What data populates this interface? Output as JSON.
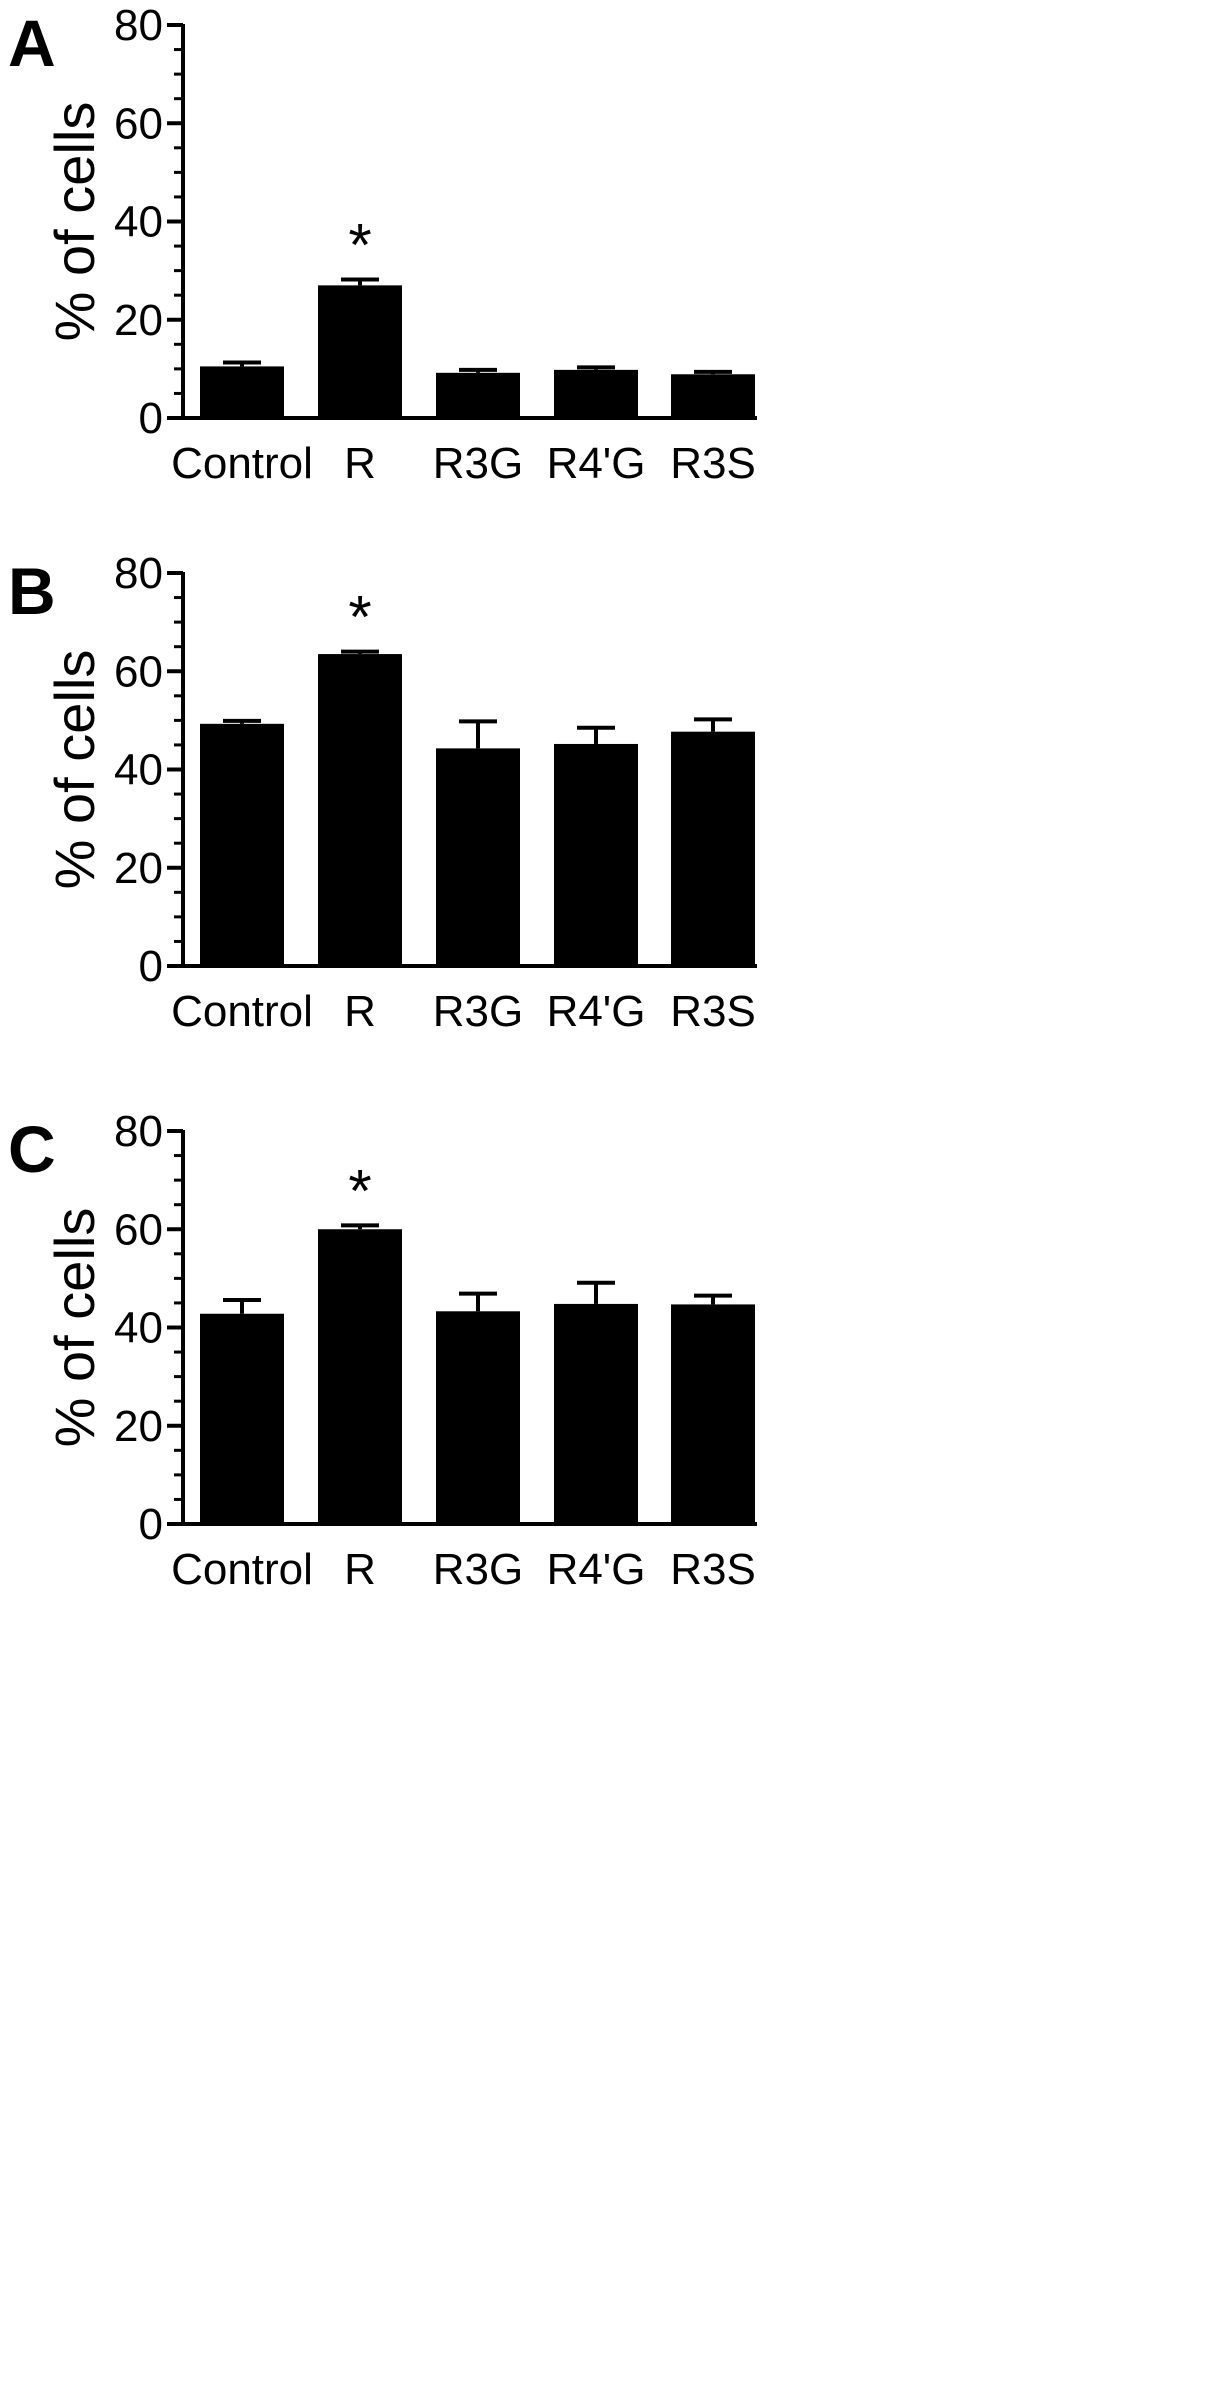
{
  "chart_data": [
    {
      "type": "bar",
      "panel_label": "A",
      "categories": [
        "Control",
        "R",
        "R3G",
        "R4'G",
        "R3S"
      ],
      "values": [
        10.5,
        27,
        9.2,
        9.8,
        8.9
      ],
      "errors": [
        0.8,
        1.2,
        0.6,
        0.5,
        0.5
      ],
      "annotations": [
        "",
        "*",
        "",
        "",
        ""
      ],
      "ylabel": "% of cells",
      "ylim": [
        0,
        80
      ],
      "yticks": [
        0,
        20,
        40,
        60,
        80
      ],
      "grid": false,
      "bar_color": "#000000"
    },
    {
      "type": "bar",
      "panel_label": "B",
      "categories": [
        "Control",
        "R",
        "R3G",
        "R4'G",
        "R3S"
      ],
      "values": [
        49.3,
        63.5,
        44.3,
        45.2,
        47.7
      ],
      "errors": [
        0.6,
        0.5,
        5.5,
        3.3,
        2.5
      ],
      "annotations": [
        "",
        "*",
        "",
        "",
        ""
      ],
      "ylabel": "% of cells",
      "ylim": [
        0,
        80
      ],
      "yticks": [
        0,
        20,
        40,
        60,
        80
      ],
      "grid": false,
      "bar_color": "#000000"
    },
    {
      "type": "bar",
      "panel_label": "C",
      "categories": [
        "Control",
        "R",
        "R3G",
        "R4'G",
        "R3S"
      ],
      "values": [
        42.8,
        60,
        43.3,
        44.8,
        44.7
      ],
      "errors": [
        2.8,
        0.8,
        3.6,
        4.3,
        1.8
      ],
      "annotations": [
        "",
        "*",
        "",
        "",
        ""
      ],
      "ylabel": "% of cells",
      "ylim": [
        0,
        80
      ],
      "yticks": [
        0,
        20,
        40,
        60,
        80
      ],
      "grid": false,
      "bar_color": "#000000"
    }
  ]
}
